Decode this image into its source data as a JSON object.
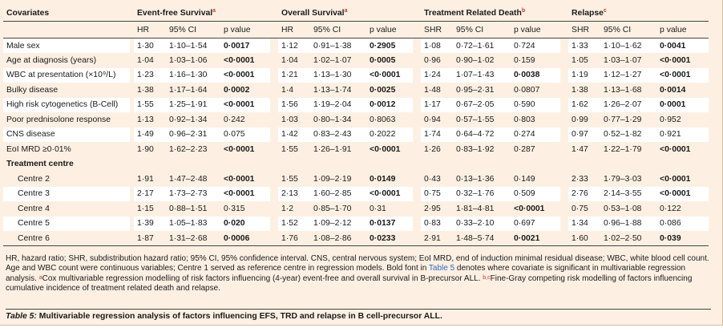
{
  "header": {
    "covariates": "Covariates",
    "groups": [
      {
        "label": "Event-free Survival",
        "sup": "a"
      },
      {
        "label": "Overall Survival",
        "sup": "a"
      },
      {
        "label": "Treatment Related Death",
        "sup": "b"
      },
      {
        "label": "Relapse",
        "sup": "c"
      }
    ],
    "sub": [
      "HR",
      "95% CI",
      "p value",
      "HR",
      "95% CI",
      "p value",
      "SHR",
      "95% CI",
      "p value",
      "SHR",
      "95% CI",
      "p value"
    ]
  },
  "rows": [
    {
      "label": "Male sex",
      "cells": [
        "1·30",
        "1·10–1·54",
        "0·0017",
        "1·12",
        "0·91–1·38",
        "0·2905",
        "1·08",
        "0·72–1·61",
        "0·724",
        "1·33",
        "1·10–1·62",
        "0·0041"
      ],
      "bold": [
        2,
        5,
        11
      ]
    },
    {
      "label": "Age at diagnosis (years)",
      "cells": [
        "1·04",
        "1·03–1·06",
        "<0·0001",
        "1·04",
        "1·02–1·07",
        "0·0005",
        "0·96",
        "0·90–1·02",
        "0·159",
        "1·05",
        "1·03–1·07",
        "<0·0001"
      ],
      "bold": [
        2,
        5,
        11
      ]
    },
    {
      "label": "WBC at presentation (×10⁹/L)",
      "cells": [
        "1·23",
        "1·16–1·30",
        "<0·0001",
        "1·21",
        "1·13–1·30",
        "<0·0001",
        "1·24",
        "1·07–1·43",
        "0·0038",
        "1·19",
        "1·12–1·27",
        "<0·0001"
      ],
      "bold": [
        2,
        5,
        8,
        11
      ]
    },
    {
      "label": "Bulky disease",
      "cells": [
        "1·38",
        "1·17–1·64",
        "0·0002",
        "1·4",
        "1·13–1·74",
        "0·0025",
        "1·48",
        "0·95–2·31",
        "0·0807",
        "1·38",
        "1·13–1·68",
        "0·0014"
      ],
      "bold": [
        2,
        5,
        11
      ]
    },
    {
      "label": "High risk cytogenetics (B-Cell)",
      "cells": [
        "1·55",
        "1·25–1·91",
        "<0·0001",
        "1·56",
        "1·19–2·04",
        "0·0012",
        "1·17",
        "0·67–2·05",
        "0·590",
        "1·62",
        "1·26–2·07",
        "0·0001"
      ],
      "bold": [
        2,
        5,
        11
      ]
    },
    {
      "label": "Poor prednisolone response",
      "cells": [
        "1·13",
        "0·92–1·34",
        "0·242",
        "1·03",
        "0·80–1·34",
        "0·8063",
        "0·94",
        "0·57–1·55",
        "0·803",
        "0·99",
        "0·77–1·29",
        "0·952"
      ],
      "bold": []
    },
    {
      "label": "CNS disease",
      "cells": [
        "1·49",
        "0·96–2·31",
        "0·075",
        "1·42",
        "0·83–2·43",
        "0·2022",
        "1·74",
        "0·64–4·72",
        "0·274",
        "0·97",
        "0·52–1·82",
        "0·921"
      ],
      "bold": []
    },
    {
      "label": "EoI MRD ≥0·01%",
      "cells": [
        "1·90",
        "1·62–2·23",
        "<0·0001",
        "1·55",
        "1·26–1·91",
        "<0·0001",
        "1·26",
        "0·83–1·92",
        "0·287",
        "1·47",
        "1·22–1·79",
        "<0·0001"
      ],
      "bold": [
        2,
        5,
        11
      ]
    },
    {
      "section": "Treatment centre"
    },
    {
      "label": "Centre 2",
      "indent": true,
      "cells": [
        "1·91",
        "1·47–2·48",
        "<0·0001",
        "1·55",
        "1·09–2·19",
        "0·0149",
        "0·43",
        "0·13–1·36",
        "0·149",
        "2·33",
        "1·79–3·03",
        "<0·0001"
      ],
      "bold": [
        2,
        5,
        11
      ]
    },
    {
      "label": "Centre 3",
      "indent": true,
      "cells": [
        "2·17",
        "1·73–2·73",
        "<0·0001",
        "2·13",
        "1·60–2·85",
        "<0·0001",
        "0·75",
        "0·32–1·76",
        "0·509",
        "2·76",
        "2·14–3·55",
        "<0·0001"
      ],
      "bold": [
        2,
        5,
        11
      ]
    },
    {
      "label": "Centre 4",
      "indent": true,
      "cells": [
        "1·15",
        "0·88–1·51",
        "0·315",
        "1·2",
        "0·85–1·70",
        "0·31",
        "2·95",
        "1·81–4·81",
        "<0·0001",
        "0·75",
        "0·53–1·08",
        "0·122"
      ],
      "bold": [
        8
      ]
    },
    {
      "label": "Centre 5",
      "indent": true,
      "cells": [
        "1·39",
        "1·05–1·83",
        "0·020",
        "1·52",
        "1·09–2·12",
        "0·0137",
        "0·83",
        "0·33–2·10",
        "0·697",
        "1·34",
        "0·96–1·88",
        "0·086"
      ],
      "bold": [
        2,
        5
      ]
    },
    {
      "label": "Centre 6",
      "indent": true,
      "cells": [
        "1·87",
        "1·31–2·68",
        "0·0006",
        "1·76",
        "1·08–2·86",
        "0·0233",
        "2·91",
        "1·48–5·74",
        "0·0021",
        "1·60",
        "1·02–2·50",
        "0·039"
      ],
      "bold": [
        2,
        5,
        8,
        11
      ]
    }
  ],
  "footnote": {
    "part1": "HR, hazard ratio; SHR, subdistribution hazard ratio; 95% CI, 95% confidence interval. CNS, central nervous system; EoI MRD, end of induction minimal residual disease; WBC, white blood cell count. Age and WBC count were continuous variables; Centre 1 served as reference centre in regression models. Bold font in ",
    "link": "Table 5",
    "part2": " denotes where covariate is significant in multivariable regression analysis. ",
    "sup_a": "a",
    "part3": "Cox multivariable regression modelling of risk factors influencing (4-year) event-free and overall survival in B-precursor ALL. ",
    "sup_bc": "b,c",
    "part4": "Fine-Gray competing risk modelling of factors influencing cumulative incidence of treatment related death and relapse."
  },
  "caption": {
    "prefix": "Table 5:",
    "text": " Multivariable regression analysis of factors influencing EFS, TRD and relapse in B cell-precursor ALL."
  }
}
